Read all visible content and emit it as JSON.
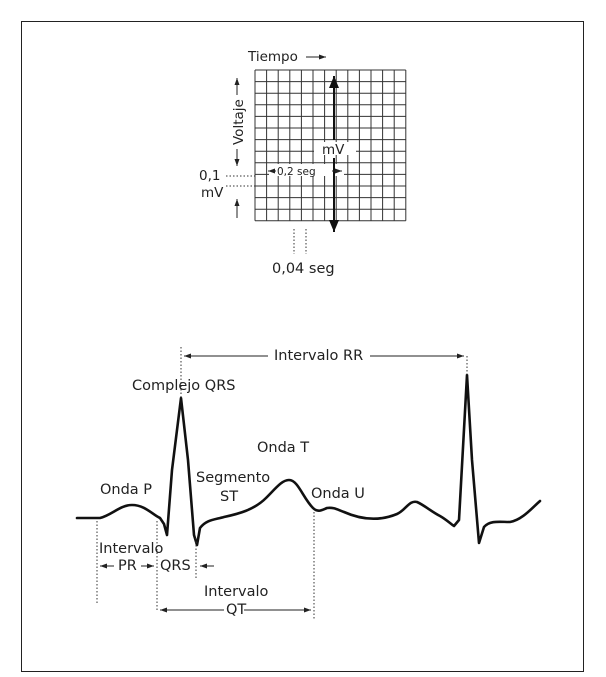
{
  "grid": {
    "time_label": "Tiempo",
    "voltage_label": "Voltaje",
    "mv_label": "mV",
    "point_one_label": "0,1",
    "point_one_unit": "mV",
    "seg_02_label": "0,2 seg",
    "seg_004_label": "0,04 seg"
  },
  "ecg": {
    "rr_interval": "Intervalo RR",
    "qrs_complex": "Complejo QRS",
    "t_wave": "Onda T",
    "p_wave": "Onda P",
    "st_segment_line1": "Segmento",
    "st_segment_line2": "ST",
    "u_wave": "Onda U",
    "pr_interval_line1": "Intervalo",
    "pr_interval_line2": "PR",
    "qrs_label": "QRS",
    "qt_interval_line1": "Intervalo",
    "qt_interval_line2": "QT"
  }
}
